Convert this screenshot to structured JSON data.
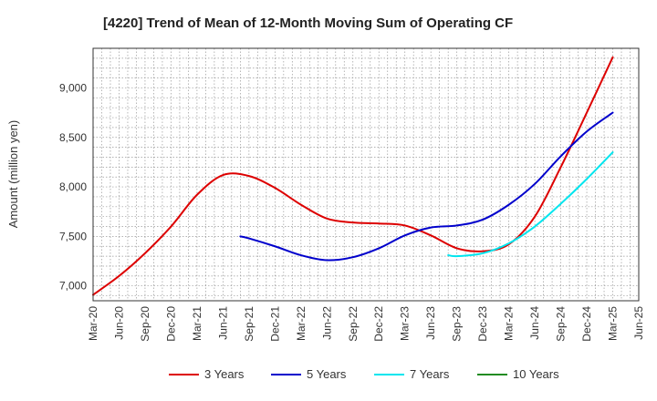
{
  "chart_data": {
    "type": "line",
    "title": "[4220]  Trend of Mean of 12-Month Moving Sum of Operating CF",
    "xlabel": "",
    "ylabel": "Amount (million yen)",
    "ylim": [
      6850,
      9400
    ],
    "yticks": [
      7000,
      7500,
      8000,
      8500,
      9000
    ],
    "ytick_labels": [
      "7,000",
      "7,500",
      "8,000",
      "8,500",
      "9,000"
    ],
    "x_start": "Mar-20",
    "x_end": "Jun-25",
    "xtick_labels": [
      "Mar-20",
      "Jun-20",
      "Sep-20",
      "Dec-20",
      "Mar-21",
      "Jun-21",
      "Sep-21",
      "Dec-21",
      "Mar-22",
      "Jun-22",
      "Sep-22",
      "Dec-22",
      "Mar-23",
      "Jun-23",
      "Sep-23",
      "Dec-23",
      "Mar-24",
      "Jun-24",
      "Sep-24",
      "Dec-24",
      "Mar-25",
      "Jun-25"
    ],
    "grid": true,
    "legend_position": "bottom",
    "series": [
      {
        "name": "3 Years",
        "color": "#dd0000",
        "points": [
          [
            "Mar-20",
            6910
          ],
          [
            "Jun-20",
            7100
          ],
          [
            "Sep-20",
            7330
          ],
          [
            "Dec-20",
            7600
          ],
          [
            "Mar-21",
            7920
          ],
          [
            "Jun-21",
            8120
          ],
          [
            "Sep-21",
            8110
          ],
          [
            "Dec-21",
            7990
          ],
          [
            "Mar-22",
            7820
          ],
          [
            "Jun-22",
            7680
          ],
          [
            "Sep-22",
            7640
          ],
          [
            "Dec-22",
            7630
          ],
          [
            "Mar-23",
            7610
          ],
          [
            "Jun-23",
            7510
          ],
          [
            "Sep-23",
            7380
          ],
          [
            "Dec-23",
            7350
          ],
          [
            "Mar-24",
            7420
          ],
          [
            "Jun-24",
            7700
          ],
          [
            "Sep-24",
            8200
          ],
          [
            "Dec-24",
            8750
          ],
          [
            "Mar-25",
            9310
          ]
        ]
      },
      {
        "name": "5 Years",
        "color": "#0000cc",
        "points": [
          [
            "Aug-21",
            7500
          ],
          [
            "Sep-21",
            7480
          ],
          [
            "Dec-21",
            7400
          ],
          [
            "Mar-22",
            7310
          ],
          [
            "Jun-22",
            7260
          ],
          [
            "Sep-22",
            7290
          ],
          [
            "Dec-22",
            7380
          ],
          [
            "Mar-23",
            7510
          ],
          [
            "Jun-23",
            7590
          ],
          [
            "Sep-23",
            7610
          ],
          [
            "Dec-23",
            7670
          ],
          [
            "Mar-24",
            7820
          ],
          [
            "Jun-24",
            8030
          ],
          [
            "Sep-24",
            8310
          ],
          [
            "Dec-24",
            8560
          ],
          [
            "Mar-25",
            8750
          ]
        ]
      },
      {
        "name": "7 Years",
        "color": "#00e5ee",
        "points": [
          [
            "Aug-23",
            7310
          ],
          [
            "Sep-23",
            7300
          ],
          [
            "Dec-23",
            7330
          ],
          [
            "Mar-24",
            7430
          ],
          [
            "Jun-24",
            7600
          ],
          [
            "Sep-24",
            7830
          ],
          [
            "Dec-24",
            8080
          ],
          [
            "Mar-25",
            8350
          ]
        ]
      },
      {
        "name": "10 Years",
        "color": "#228b22",
        "points": []
      }
    ]
  }
}
